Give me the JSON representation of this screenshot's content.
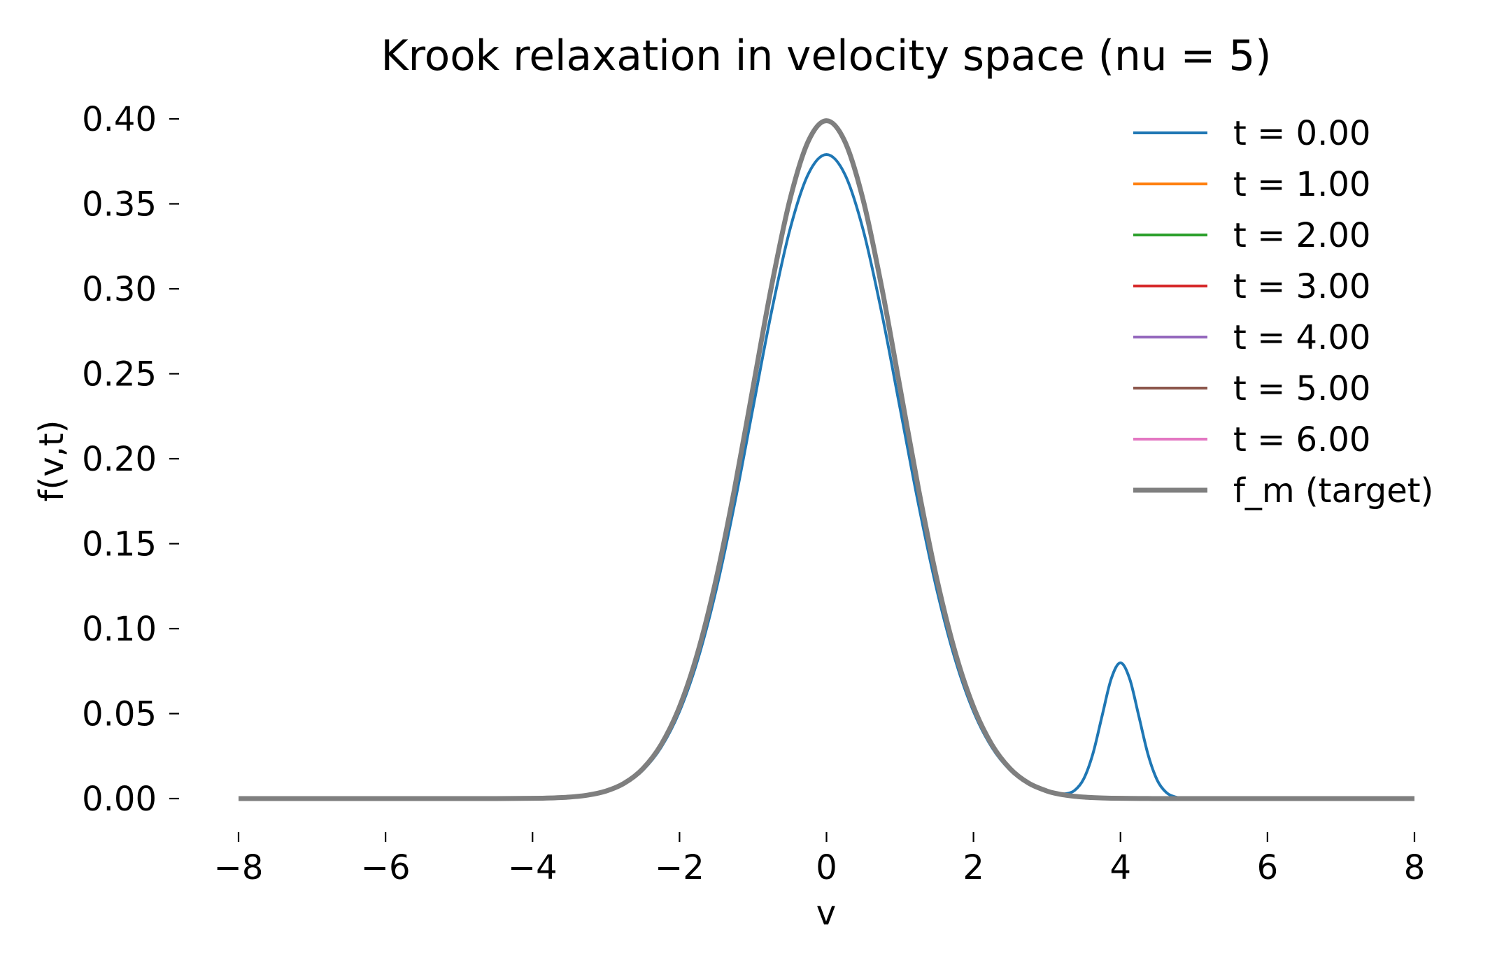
{
  "figure": {
    "background": "#ffffff"
  },
  "chart_data": {
    "type": "line",
    "title": "Krook relaxation in velocity space (nu = 5)",
    "xlabel": "v",
    "ylabel": "f(v,t)",
    "xlim": [
      -8,
      8
    ],
    "ylim": [
      0.0,
      0.4
    ],
    "grid": false,
    "legend_position": "upper right",
    "x_ticks": [
      -8,
      -6,
      -4,
      -2,
      0,
      2,
      4,
      6,
      8
    ],
    "x_tick_labels": [
      "−8",
      "−6",
      "−4",
      "−2",
      "0",
      "2",
      "4",
      "6",
      "8"
    ],
    "y_ticks": [
      0.0,
      0.05,
      0.1,
      0.15,
      0.2,
      0.25,
      0.3,
      0.35,
      0.4
    ],
    "y_tick_labels": [
      "0.00",
      "0.05",
      "0.10",
      "0.15",
      "0.20",
      "0.25",
      "0.30",
      "0.35",
      "0.40"
    ],
    "nu": 5,
    "x": [
      -8,
      -7,
      -6,
      -5,
      -4.5,
      -4,
      -3.75,
      -3.5,
      -3.25,
      -3,
      -2.75,
      -2.5,
      -2.25,
      -2,
      -1.75,
      -1.5,
      -1.25,
      -1,
      -0.75,
      -0.5,
      -0.25,
      0,
      0.25,
      0.5,
      0.75,
      1,
      1.25,
      1.5,
      1.75,
      2,
      2.25,
      2.5,
      2.75,
      3,
      3.125,
      3.25,
      3.375,
      3.5,
      3.625,
      3.75,
      3.875,
      4,
      4.125,
      4.25,
      4.375,
      4.5,
      4.625,
      4.75,
      4.875,
      5,
      5.5,
      6,
      7,
      8
    ],
    "series": [
      {
        "name": "t = 0.00",
        "t": 0.0,
        "color": "#1f77b4",
        "width": 4,
        "values": [
          0,
          0,
          0,
          0,
          1e-05,
          0.00013,
          0.00033,
          0.00083,
          0.00193,
          0.00421,
          0.00864,
          0.01665,
          0.03015,
          0.05129,
          0.08197,
          0.12304,
          0.17352,
          0.22987,
          0.28608,
          0.33447,
          0.36734,
          0.379,
          0.36734,
          0.33447,
          0.28608,
          0.22987,
          0.17352,
          0.12304,
          0.08197,
          0.05129,
          0.03015,
          0.01665,
          0.00864,
          0.00424,
          0.00305,
          0.00282,
          0.00478,
          0.01163,
          0.02643,
          0.04872,
          0.07062,
          0.07991,
          0.07049,
          0.04844,
          0.02593,
          0.01082,
          0.00352,
          0.0009,
          0.00018,
          3e-05,
          0,
          0,
          0,
          0
        ]
      },
      {
        "name": "t = 1.00",
        "t": 1.0,
        "color": "#ff7f0e",
        "width": 4
      },
      {
        "name": "t = 2.00",
        "t": 2.0,
        "color": "#2ca02c",
        "width": 4
      },
      {
        "name": "t = 3.00",
        "t": 3.0,
        "color": "#d62728",
        "width": 4
      },
      {
        "name": "t = 4.00",
        "t": 4.0,
        "color": "#9467bd",
        "width": 4
      },
      {
        "name": "t = 5.00",
        "t": 5.0,
        "color": "#8c564b",
        "width": 4
      },
      {
        "name": "t = 6.00",
        "t": 6.0,
        "color": "#e377c2",
        "width": 4
      },
      {
        "name": "f_m (target)",
        "color": "#7f7f7f",
        "width": 7,
        "values": [
          0,
          0,
          0,
          0,
          2e-05,
          0.00013,
          0.00035,
          0.00087,
          0.00203,
          0.00443,
          0.00909,
          0.01753,
          0.03174,
          0.05399,
          0.08628,
          0.12952,
          0.18265,
          0.24197,
          0.30114,
          0.35207,
          0.38667,
          0.39894,
          0.38667,
          0.35207,
          0.30114,
          0.24197,
          0.18265,
          0.12952,
          0.08628,
          0.05399,
          0.03174,
          0.01753,
          0.00909,
          0.00443,
          0.00302,
          0.00203,
          0.00134,
          0.00087,
          0.00056,
          0.00035,
          0.00022,
          0.00013,
          8e-05,
          5e-05,
          3e-05,
          2e-05,
          1e-05,
          1e-05,
          0,
          0,
          0,
          0,
          0,
          0
        ]
      }
    ]
  }
}
